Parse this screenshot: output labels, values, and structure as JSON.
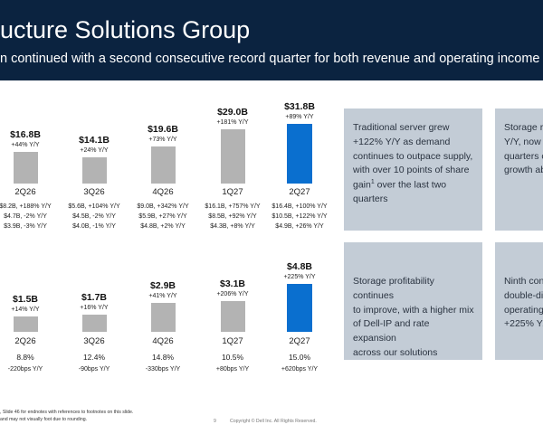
{
  "header": {
    "title": "ucture Solutions Group",
    "subtitle": "n continued with a second consecutive record quarter for both revenue and operating income"
  },
  "chart_data": [
    {
      "type": "bar",
      "categories": [
        "2Q26",
        "3Q26",
        "4Q26",
        "1Q27",
        "2Q27"
      ],
      "values": [
        16.8,
        14.1,
        19.6,
        29.0,
        31.8
      ],
      "value_labels": [
        "$16.8B",
        "$14.1B",
        "$19.6B",
        "$29.0B",
        "$31.8B"
      ],
      "yoy_labels": [
        "+44% Y/Y",
        "+24% Y/Y",
        "+73% Y/Y",
        "+181% Y/Y",
        "+89% Y/Y"
      ],
      "highlight_color": "#0a6fcf",
      "bar_color": "#b3b3b3",
      "details": [
        [
          "$8.2B, +188% Y/Y",
          "$4.7B, -2% Y/Y",
          "$3.9B, -3% Y/Y"
        ],
        [
          "$5.6B, +104% Y/Y",
          "$4.5B, -2% Y/Y",
          "$4.0B, -1% Y/Y"
        ],
        [
          "$9.0B, +342% Y/Y",
          "$5.9B, +27% Y/Y",
          "$4.8B, +2% Y/Y"
        ],
        [
          "$16.1B, +757% Y/Y",
          "$8.5B, +92% Y/Y",
          "$4.3B, +8% Y/Y"
        ],
        [
          "$16.4B, +100% Y/Y",
          "$10.5B, +122% Y/Y",
          "$4.9B, +26% Y/Y"
        ]
      ]
    },
    {
      "type": "bar",
      "categories": [
        "2Q26",
        "3Q26",
        "4Q26",
        "1Q27",
        "2Q27"
      ],
      "values": [
        1.5,
        1.7,
        2.9,
        3.1,
        4.8
      ],
      "value_labels": [
        "$1.5B",
        "$1.7B",
        "$2.9B",
        "$3.1B",
        "$4.8B"
      ],
      "yoy_labels": [
        "+14% Y/Y",
        "+16% Y/Y",
        "+41% Y/Y",
        "+206% Y/Y",
        "+225% Y/Y"
      ],
      "highlight_color": "#0a6fcf",
      "bar_color": "#b3b3b3",
      "margins": [
        "8.8%",
        "12.4%",
        "14.8%",
        "10.5%",
        "15.0%"
      ],
      "margin_changes": [
        "-220bps Y/Y",
        "-90bps Y/Y",
        "-330bps Y/Y",
        "+80bps Y/Y",
        "+620bps Y/Y"
      ]
    }
  ],
  "boxes": [
    {
      "lines": [
        "Traditional server grew",
        "+122% Y/Y as demand",
        "continues to outpace supply,",
        "with over 10 points of share"
      ],
      "gain_prefix": "gain",
      "sup": "1",
      "gain_suffix": " over the last two",
      "last": "quarters"
    },
    {
      "lines": [
        "Storage re",
        "Y/Y, now s",
        "quarters o",
        "growth ab"
      ]
    },
    {
      "lines": [
        "Storage profitability continues",
        "to improve, with a higher mix",
        "of Dell-IP and rate expansion",
        "across our solutions"
      ]
    },
    {
      "lines": [
        "Ninth cons",
        "double-dig",
        "operating",
        "+225% Y/"
      ]
    }
  ],
  "footer": {
    "note1": ", Slide 46 for endnotes with references to footnotes on this slide.",
    "note2": "and may not visually foot due to rounding.",
    "page": "9",
    "copyright": "Copyright © Dell Inc. All Rights Reserved."
  }
}
